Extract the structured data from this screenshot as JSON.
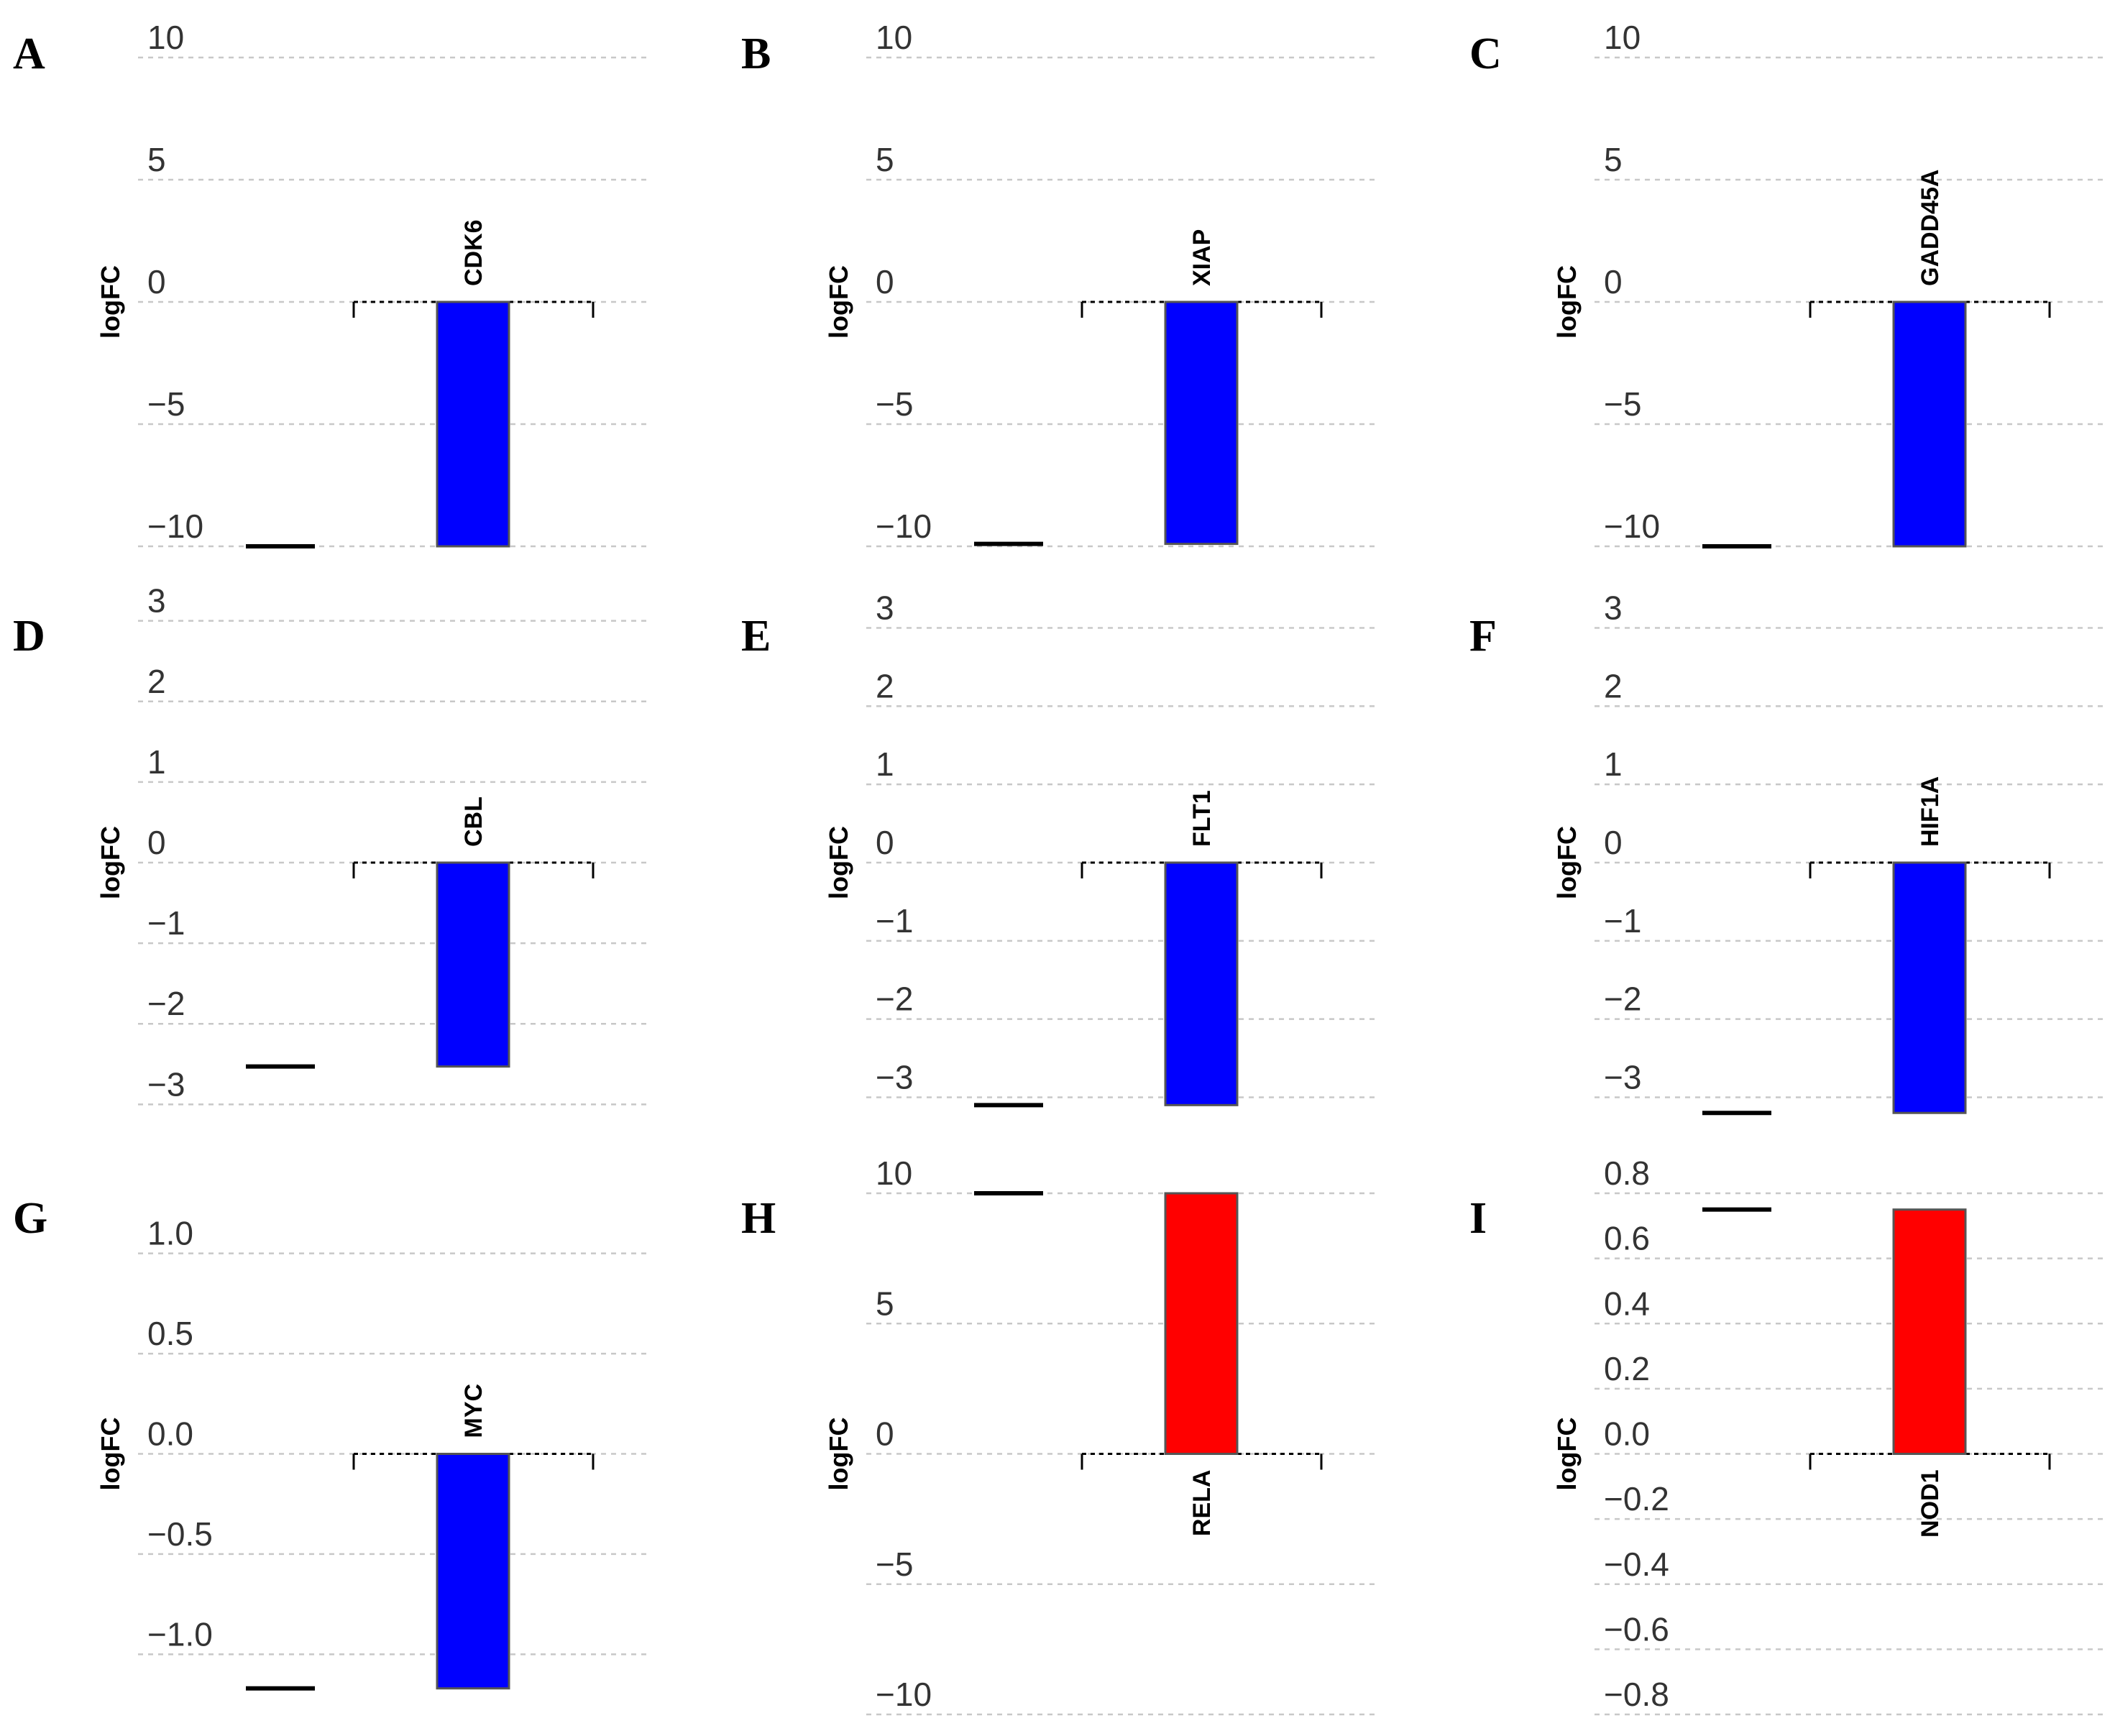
{
  "chart_data": [
    {
      "panel": "A",
      "type": "bar",
      "categories": [
        "CDK6"
      ],
      "values": [
        -10
      ],
      "ylabel": "logFC",
      "ylim": [
        -10,
        10
      ],
      "yticks": [
        10,
        5,
        0,
        -5,
        -10
      ],
      "tick_labels": [
        "10",
        "5",
        "0",
        "−5",
        "−10"
      ],
      "bar_color": "#0000ff",
      "grid": true
    },
    {
      "panel": "B",
      "type": "bar",
      "categories": [
        "XIAP"
      ],
      "values": [
        -9.9
      ],
      "ylabel": "logFC",
      "ylim": [
        -10,
        10
      ],
      "yticks": [
        10,
        5,
        0,
        -5,
        -10
      ],
      "tick_labels": [
        "10",
        "5",
        "0",
        "−5",
        "−10"
      ],
      "bar_color": "#0000ff",
      "grid": true
    },
    {
      "panel": "C",
      "type": "bar",
      "categories": [
        "GADD45A"
      ],
      "values": [
        -10
      ],
      "ylabel": "logFC",
      "ylim": [
        -10,
        10
      ],
      "yticks": [
        10,
        5,
        0,
        -5,
        -10
      ],
      "tick_labels": [
        "10",
        "5",
        "0",
        "−5",
        "−10"
      ],
      "bar_color": "#0000ff",
      "grid": true
    },
    {
      "panel": "D",
      "type": "bar",
      "categories": [
        "CBL"
      ],
      "values": [
        -2.53
      ],
      "ylabel": "logFC",
      "ylim": [
        -3.3,
        3.3
      ],
      "yticks": [
        3,
        2,
        1,
        0,
        -1,
        -2,
        -3
      ],
      "tick_labels": [
        "3",
        "2",
        "1",
        "0",
        "−1",
        "−2",
        "−3"
      ],
      "bar_color": "#0000ff",
      "grid": true
    },
    {
      "panel": "E",
      "type": "bar",
      "categories": [
        "FLT1"
      ],
      "values": [
        -3.1
      ],
      "ylabel": "logFC",
      "ylim": [
        -3.4,
        3.4
      ],
      "yticks": [
        3,
        2,
        1,
        0,
        -1,
        -2,
        -3
      ],
      "tick_labels": [
        "3",
        "2",
        "1",
        "0",
        "−1",
        "−2",
        "−3"
      ],
      "bar_color": "#0000ff",
      "grid": true
    },
    {
      "panel": "F",
      "type": "bar",
      "categories": [
        "HIF1A"
      ],
      "values": [
        -3.2
      ],
      "ylabel": "logFC",
      "ylim": [
        -3.4,
        3.4
      ],
      "yticks": [
        3,
        2,
        1,
        0,
        -1,
        -2,
        -3
      ],
      "tick_labels": [
        "3",
        "2",
        "1",
        "0",
        "−1",
        "−2",
        "−3"
      ],
      "bar_color": "#0000ff",
      "grid": true
    },
    {
      "panel": "G",
      "type": "bar",
      "categories": [
        "MYC"
      ],
      "values": [
        -1.17
      ],
      "ylabel": "logFC",
      "ylim": [
        -1.3,
        1.3
      ],
      "yticks": [
        1.0,
        0.5,
        0.0,
        -0.5,
        -1.0
      ],
      "tick_labels": [
        "1.0",
        "0.5",
        "0.0",
        "−0.5",
        "−1.0"
      ],
      "bar_color": "#0000ff",
      "grid": true
    },
    {
      "panel": "H",
      "type": "bar",
      "categories": [
        "RELA"
      ],
      "values": [
        10
      ],
      "ylabel": "logFC",
      "ylim": [
        -10,
        10
      ],
      "yticks": [
        10,
        5,
        0,
        -5,
        -10
      ],
      "tick_labels": [
        "10",
        "5",
        "0",
        "−5",
        "−10"
      ],
      "bar_color": "#ff0000",
      "grid": true
    },
    {
      "panel": "I",
      "type": "bar",
      "categories": [
        "NOD1"
      ],
      "values": [
        0.75
      ],
      "ylabel": "logFC",
      "ylim": [
        -0.8,
        0.8
      ],
      "yticks": [
        0.8,
        0.6,
        0.4,
        0.2,
        0.0,
        -0.2,
        -0.4,
        -0.6,
        -0.8
      ],
      "tick_labels": [
        "0.8",
        "0.6",
        "0.4",
        "0.2",
        "0.0",
        "−0.2",
        "−0.4",
        "−0.6",
        "−0.8"
      ],
      "bar_color": "#ff0000",
      "grid": true
    }
  ]
}
